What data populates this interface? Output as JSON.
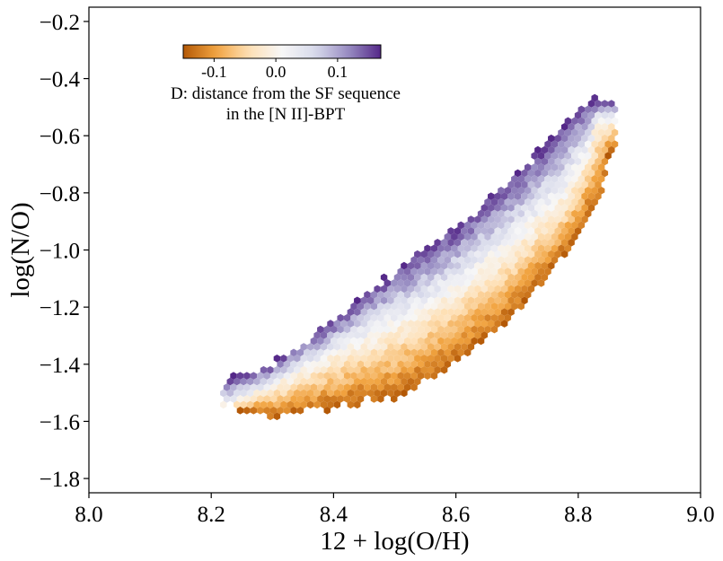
{
  "chart_data": {
    "type": "heatmap",
    "subtype": "hexbin",
    "title": "",
    "xlabel": "12 + log(O/H)",
    "ylabel": "log(N/O)",
    "xlim": [
      8.0,
      9.0
    ],
    "ylim": [
      -1.85,
      -0.15
    ],
    "xticks": [
      8.0,
      8.2,
      8.4,
      8.6,
      8.8,
      9.0
    ],
    "xtick_labels": [
      "8.0",
      "8.2",
      "8.4",
      "8.6",
      "8.8",
      "9.0"
    ],
    "yticks": [
      -1.8,
      -1.6,
      -1.4,
      -1.2,
      -1.0,
      -0.8,
      -0.6,
      -0.4,
      -0.2
    ],
    "ytick_labels": [
      "−1.8",
      "−1.6",
      "−1.4",
      "−1.2",
      "−1.0",
      "−0.8",
      "−0.6",
      "−0.4",
      "−0.2"
    ],
    "grid": false,
    "colormap": "PuOr",
    "colormap_colors": [
      "#b35806",
      "#f1a340",
      "#fee0b6",
      "#f7f7f7",
      "#d8daeb",
      "#998ec3",
      "#542788"
    ],
    "colorbar": {
      "placement": "top-left",
      "orientation": "horizontal",
      "range": [
        -0.15,
        0.17
      ],
      "ticks": [
        -0.1,
        0.0,
        0.1
      ],
      "tick_labels": [
        "-0.1",
        "0.0",
        "0.1"
      ],
      "label_lines": [
        "D: distance from the SF sequence",
        "in the [N II]-BPT"
      ]
    },
    "distribution": {
      "ridge": [
        [
          8.22,
          -1.55
        ],
        [
          8.3,
          -1.48
        ],
        [
          8.4,
          -1.37
        ],
        [
          8.5,
          -1.27
        ],
        [
          8.6,
          -1.14
        ],
        [
          8.7,
          -0.97
        ],
        [
          8.78,
          -0.8
        ],
        [
          8.82,
          -0.65
        ],
        [
          8.83,
          -0.55
        ]
      ],
      "lower_edge": [
        [
          8.22,
          -1.55
        ],
        [
          8.3,
          -1.59
        ],
        [
          8.4,
          -1.55
        ],
        [
          8.5,
          -1.52
        ],
        [
          8.6,
          -1.4
        ],
        [
          8.7,
          -1.22
        ],
        [
          8.78,
          -1.02
        ],
        [
          8.84,
          -0.8
        ],
        [
          8.85,
          -0.65
        ]
      ],
      "upper_edge": [
        [
          8.22,
          -1.46
        ],
        [
          8.3,
          -1.4
        ],
        [
          8.4,
          -1.24
        ],
        [
          8.5,
          -1.07
        ],
        [
          8.6,
          -0.92
        ],
        [
          8.7,
          -0.73
        ],
        [
          8.78,
          -0.55
        ],
        [
          8.8,
          -0.5
        ],
        [
          8.81,
          -0.48
        ]
      ],
      "x_range": [
        8.22,
        8.86
      ],
      "value_range": [
        -0.15,
        0.17
      ]
    }
  }
}
